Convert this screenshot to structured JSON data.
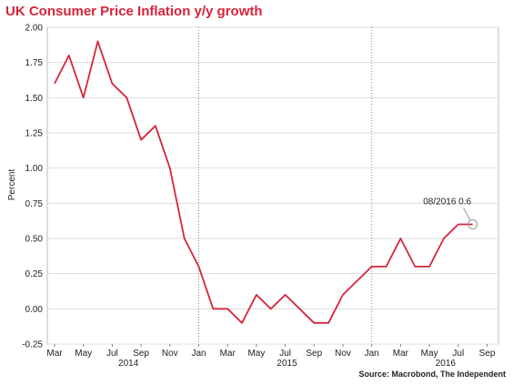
{
  "chart_data": {
    "type": "line",
    "title": "UK Consumer Price Inflation y/y growth",
    "ylabel": "Percent",
    "xlabel": "",
    "ylim": [
      -0.25,
      2.0
    ],
    "yticks": [
      "2.00",
      "1.75",
      "1.50",
      "1.25",
      "1.00",
      "0.75",
      "0.50",
      "0.25",
      "0.00",
      "-0.25"
    ],
    "xticks": [
      "Mar",
      "May",
      "Jul",
      "Sep",
      "Nov",
      "Jan",
      "Mar",
      "May",
      "Jul",
      "Sep",
      "Nov",
      "Jan",
      "Mar",
      "May",
      "Jul",
      "Sep"
    ],
    "year_labels": [
      "2014",
      "2015",
      "2016"
    ],
    "grid": true,
    "line_color": "#d6243a",
    "series": [
      {
        "x": [
          "2014-03",
          "2014-04",
          "2014-05",
          "2014-06",
          "2014-07",
          "2014-08",
          "2014-09",
          "2014-10",
          "2014-11",
          "2014-12",
          "2015-01",
          "2015-02",
          "2015-03",
          "2015-04",
          "2015-05",
          "2015-06",
          "2015-07",
          "2015-08",
          "2015-09",
          "2015-10",
          "2015-11",
          "2015-12",
          "2016-01",
          "2016-02",
          "2016-03",
          "2016-04",
          "2016-05",
          "2016-06",
          "2016-07",
          "2016-08"
        ],
        "values": [
          1.6,
          1.8,
          1.5,
          1.9,
          1.6,
          1.5,
          1.2,
          1.3,
          1.0,
          0.5,
          0.3,
          0.0,
          0.0,
          -0.1,
          0.1,
          0.0,
          0.1,
          0.0,
          -0.1,
          -0.1,
          0.1,
          0.2,
          0.3,
          0.3,
          0.5,
          0.3,
          0.3,
          0.5,
          0.6,
          0.6
        ]
      }
    ],
    "annotation": {
      "text": "08/2016 0.6",
      "x": "2016-08",
      "value": 0.6
    },
    "source": "Source: Macrobond, The Independent"
  }
}
